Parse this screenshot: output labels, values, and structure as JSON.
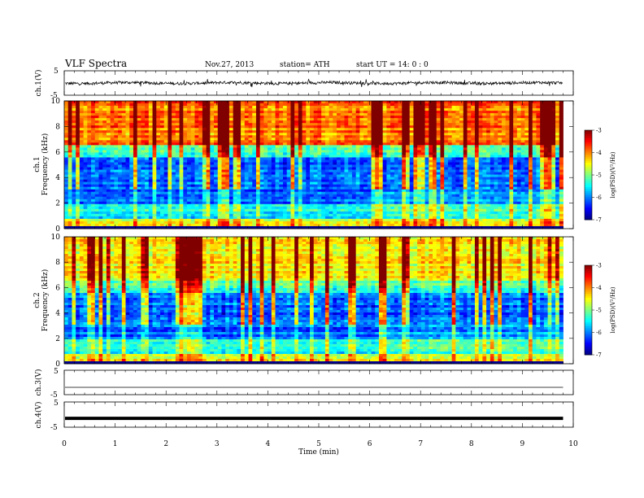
{
  "header": {
    "title": "VLF  Spectra",
    "date": "Nov.27, 2013",
    "station": "station= ATH",
    "start_time": "start  UT =   14: 0  : 0"
  },
  "chart_data": [
    {
      "type": "line",
      "panel": "ch1-waveform",
      "ylabel": "ch.1(V)",
      "ylim": [
        -5,
        5
      ],
      "yticks": [
        "5",
        "-5"
      ],
      "xlim": [
        0,
        10
      ],
      "x_end": 9.8,
      "description_signal": "noisy waveform roughly within +/-1 V"
    },
    {
      "type": "heatmap",
      "panel": "ch1-spectrogram",
      "ylabel_ch": "ch.1",
      "ylabel": "Frequency  (kHz)",
      "ylim": [
        0,
        10
      ],
      "yticks": [
        "0",
        "2",
        "4",
        "6",
        "8",
        "10"
      ],
      "xlim": [
        0,
        10
      ],
      "x_end": 9.8,
      "colorbar": {
        "label": "log(PSD)(V²/Hz)",
        "range": [
          -7,
          -3
        ],
        "ticks": [
          "-3",
          "-4",
          "-5",
          "-6",
          "-7"
        ]
      }
    },
    {
      "type": "heatmap",
      "panel": "ch2-spectrogram",
      "ylabel_ch": "ch.2",
      "ylabel": "Frequency  (kHz)",
      "ylim": [
        0,
        10
      ],
      "yticks": [
        "0",
        "2",
        "4",
        "6",
        "8",
        "10"
      ],
      "xlim": [
        0,
        10
      ],
      "x_end": 9.8,
      "colorbar": {
        "label": "log(PSD)(V²/Hz)",
        "range": [
          -7,
          -3
        ],
        "ticks": [
          "-3",
          "-4",
          "-5",
          "-6",
          "-7"
        ]
      }
    },
    {
      "type": "line",
      "panel": "ch3-waveform",
      "ylabel": "ch.3(V)",
      "ylim": [
        -5,
        5
      ],
      "yticks": [
        "5",
        "-5"
      ],
      "xlim": [
        0,
        10
      ],
      "x_end": 9.8,
      "level": -2
    },
    {
      "type": "line",
      "panel": "ch4-waveform",
      "ylabel": "ch.4(V)",
      "ylim": [
        -5,
        5
      ],
      "yticks": [
        "5",
        "-5"
      ],
      "xlim": [
        0,
        10
      ],
      "x_end": 9.8,
      "level": -1.5
    }
  ],
  "xaxis": {
    "label": "Time  (min)",
    "ticks": [
      "0",
      "1",
      "2",
      "3",
      "4",
      "5",
      "6",
      "7",
      "8",
      "9",
      "10"
    ]
  }
}
